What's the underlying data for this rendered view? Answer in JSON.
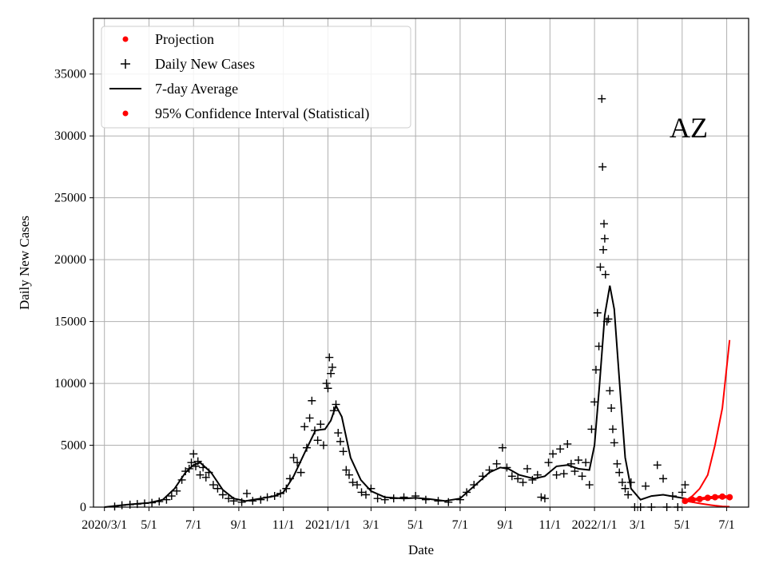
{
  "chart_data": {
    "type": "line",
    "xlabel": "Date",
    "ylabel": "Daily New Cases",
    "annotation": "AZ",
    "ylim": [
      0,
      39500
    ],
    "xlim": [
      "2020-02-15",
      "2022-07-31"
    ],
    "yticks": [
      0,
      5000,
      10000,
      15000,
      20000,
      25000,
      30000,
      35000
    ],
    "xticks": [
      {
        "date": "2020-03-01",
        "label": "2020/3/1"
      },
      {
        "date": "2020-05-01",
        "label": "5/1"
      },
      {
        "date": "2020-07-01",
        "label": "7/1"
      },
      {
        "date": "2020-09-01",
        "label": "9/1"
      },
      {
        "date": "2020-11-01",
        "label": "11/1"
      },
      {
        "date": "2021-01-01",
        "label": "2021/1/1"
      },
      {
        "date": "2021-03-01",
        "label": "3/1"
      },
      {
        "date": "2021-05-01",
        "label": "5/1"
      },
      {
        "date": "2021-07-01",
        "label": "7/1"
      },
      {
        "date": "2021-09-01",
        "label": "9/1"
      },
      {
        "date": "2021-11-01",
        "label": "11/1"
      },
      {
        "date": "2022-01-01",
        "label": "2022/1/1"
      },
      {
        "date": "2022-03-01",
        "label": "3/1"
      },
      {
        "date": "2022-05-01",
        "label": "5/1"
      },
      {
        "date": "2022-07-01",
        "label": "7/1"
      }
    ],
    "grid": true,
    "legend_position": "top-left",
    "legend": [
      {
        "label": "Projection",
        "marker": "dot",
        "color": "#ff0000"
      },
      {
        "label": "Daily New Cases",
        "marker": "plus",
        "color": "#000000"
      },
      {
        "label": "7-day Average",
        "marker": "line",
        "color": "#000000"
      },
      {
        "label": "95% Confidence Interval (Statistical)",
        "marker": "dot",
        "color": "#ff0000"
      }
    ],
    "series": [
      {
        "name": "7-day Average",
        "color": "#000000",
        "points": [
          [
            "2020-03-01",
            0
          ],
          [
            "2020-04-01",
            200
          ],
          [
            "2020-05-01",
            350
          ],
          [
            "2020-05-20",
            600
          ],
          [
            "2020-06-05",
            1500
          ],
          [
            "2020-06-20",
            2800
          ],
          [
            "2020-07-01",
            3400
          ],
          [
            "2020-07-10",
            3600
          ],
          [
            "2020-07-25",
            2800
          ],
          [
            "2020-08-10",
            1400
          ],
          [
            "2020-08-25",
            700
          ],
          [
            "2020-09-10",
            500
          ],
          [
            "2020-10-01",
            700
          ],
          [
            "2020-10-20",
            900
          ],
          [
            "2020-11-01",
            1200
          ],
          [
            "2020-11-15",
            2500
          ],
          [
            "2020-12-01",
            4500
          ],
          [
            "2020-12-15",
            6200
          ],
          [
            "2020-12-28",
            6300
          ],
          [
            "2021-01-05",
            7000
          ],
          [
            "2021-01-12",
            8200
          ],
          [
            "2021-01-20",
            7300
          ],
          [
            "2021-02-01",
            4000
          ],
          [
            "2021-02-15",
            2200
          ],
          [
            "2021-03-01",
            1300
          ],
          [
            "2021-03-20",
            800
          ],
          [
            "2021-04-15",
            700
          ],
          [
            "2021-05-01",
            750
          ],
          [
            "2021-05-20",
            650
          ],
          [
            "2021-06-10",
            500
          ],
          [
            "2021-07-01",
            700
          ],
          [
            "2021-07-20",
            1700
          ],
          [
            "2021-08-10",
            2800
          ],
          [
            "2021-08-25",
            3200
          ],
          [
            "2021-09-05",
            3100
          ],
          [
            "2021-09-20",
            2600
          ],
          [
            "2021-10-10",
            2300
          ],
          [
            "2021-10-25",
            2500
          ],
          [
            "2021-11-10",
            3300
          ],
          [
            "2021-11-25",
            3400
          ],
          [
            "2021-12-10",
            3100
          ],
          [
            "2021-12-25",
            3000
          ],
          [
            "2022-01-01",
            5000
          ],
          [
            "2022-01-08",
            10000
          ],
          [
            "2022-01-15",
            15500
          ],
          [
            "2022-01-22",
            17900
          ],
          [
            "2022-01-28",
            16000
          ],
          [
            "2022-02-05",
            9500
          ],
          [
            "2022-02-12",
            4000
          ],
          [
            "2022-02-20",
            1500
          ],
          [
            "2022-03-05",
            600
          ],
          [
            "2022-03-20",
            900
          ],
          [
            "2022-04-05",
            1000
          ],
          [
            "2022-04-25",
            800
          ],
          [
            "2022-05-05",
            700
          ]
        ]
      },
      {
        "name": "Daily New Cases",
        "color": "#000000",
        "points": [
          [
            "2020-03-15",
            50
          ],
          [
            "2020-03-25",
            150
          ],
          [
            "2020-04-05",
            200
          ],
          [
            "2020-04-15",
            250
          ],
          [
            "2020-04-25",
            300
          ],
          [
            "2020-05-05",
            350
          ],
          [
            "2020-05-15",
            450
          ],
          [
            "2020-05-25",
            600
          ],
          [
            "2020-06-01",
            900
          ],
          [
            "2020-06-08",
            1300
          ],
          [
            "2020-06-15",
            2200
          ],
          [
            "2020-06-20",
            2900
          ],
          [
            "2020-06-25",
            3100
          ],
          [
            "2020-06-28",
            3600
          ],
          [
            "2020-07-01",
            4300
          ],
          [
            "2020-07-04",
            3300
          ],
          [
            "2020-07-07",
            3700
          ],
          [
            "2020-07-10",
            2600
          ],
          [
            "2020-07-14",
            3200
          ],
          [
            "2020-07-18",
            2400
          ],
          [
            "2020-07-22",
            2800
          ],
          [
            "2020-07-28",
            1800
          ],
          [
            "2020-08-03",
            1500
          ],
          [
            "2020-08-10",
            1000
          ],
          [
            "2020-08-18",
            700
          ],
          [
            "2020-08-25",
            500
          ],
          [
            "2020-09-05",
            400
          ],
          [
            "2020-09-12",
            1100
          ],
          [
            "2020-09-20",
            500
          ],
          [
            "2020-10-01",
            600
          ],
          [
            "2020-10-10",
            800
          ],
          [
            "2020-10-20",
            900
          ],
          [
            "2020-10-28",
            1100
          ],
          [
            "2020-11-05",
            1500
          ],
          [
            "2020-11-10",
            2300
          ],
          [
            "2020-11-15",
            4000
          ],
          [
            "2020-11-20",
            3600
          ],
          [
            "2020-11-25",
            2800
          ],
          [
            "2020-11-30",
            6500
          ],
          [
            "2020-12-03",
            4800
          ],
          [
            "2020-12-07",
            7200
          ],
          [
            "2020-12-10",
            8600
          ],
          [
            "2020-12-14",
            6200
          ],
          [
            "2020-12-18",
            5400
          ],
          [
            "2020-12-22",
            6700
          ],
          [
            "2020-12-26",
            5000
          ],
          [
            "2020-12-30",
            10000
          ],
          [
            "2021-01-01",
            9600
          ],
          [
            "2021-01-03",
            12100
          ],
          [
            "2021-01-05",
            10800
          ],
          [
            "2021-01-07",
            11300
          ],
          [
            "2021-01-09",
            7800
          ],
          [
            "2021-01-12",
            8300
          ],
          [
            "2021-01-15",
            6000
          ],
          [
            "2021-01-18",
            5300
          ],
          [
            "2021-01-22",
            4500
          ],
          [
            "2021-01-26",
            3000
          ],
          [
            "2021-01-30",
            2600
          ],
          [
            "2021-02-04",
            2000
          ],
          [
            "2021-02-10",
            1800
          ],
          [
            "2021-02-16",
            1200
          ],
          [
            "2021-02-22",
            1000
          ],
          [
            "2021-03-01",
            1500
          ],
          [
            "2021-03-10",
            700
          ],
          [
            "2021-03-20",
            600
          ],
          [
            "2021-04-01",
            700
          ],
          [
            "2021-04-15",
            800
          ],
          [
            "2021-05-01",
            900
          ],
          [
            "2021-05-15",
            600
          ],
          [
            "2021-06-01",
            500
          ],
          [
            "2021-06-15",
            400
          ],
          [
            "2021-07-01",
            600
          ],
          [
            "2021-07-10",
            1200
          ],
          [
            "2021-07-20",
            1800
          ],
          [
            "2021-08-01",
            2500
          ],
          [
            "2021-08-10",
            3000
          ],
          [
            "2021-08-20",
            3500
          ],
          [
            "2021-08-28",
            4800
          ],
          [
            "2021-09-03",
            3200
          ],
          [
            "2021-09-10",
            2500
          ],
          [
            "2021-09-18",
            2300
          ],
          [
            "2021-09-25",
            2000
          ],
          [
            "2021-10-01",
            3100
          ],
          [
            "2021-10-08",
            2200
          ],
          [
            "2021-10-15",
            2600
          ],
          [
            "2021-10-20",
            800
          ],
          [
            "2021-10-25",
            700
          ],
          [
            "2021-10-30",
            3600
          ],
          [
            "2021-11-05",
            4300
          ],
          [
            "2021-11-10",
            2600
          ],
          [
            "2021-11-15",
            4700
          ],
          [
            "2021-11-20",
            2700
          ],
          [
            "2021-11-25",
            5100
          ],
          [
            "2021-11-30",
            3500
          ],
          [
            "2021-12-05",
            2900
          ],
          [
            "2021-12-10",
            3800
          ],
          [
            "2021-12-15",
            2500
          ],
          [
            "2021-12-20",
            3600
          ],
          [
            "2021-12-25",
            1800
          ],
          [
            "2021-12-28",
            6300
          ],
          [
            "2022-01-01",
            8500
          ],
          [
            "2022-01-03",
            11100
          ],
          [
            "2022-01-05",
            15700
          ],
          [
            "2022-01-07",
            13000
          ],
          [
            "2022-01-09",
            19400
          ],
          [
            "2022-01-11",
            33000
          ],
          [
            "2022-01-12",
            27500
          ],
          [
            "2022-01-13",
            20800
          ],
          [
            "2022-01-14",
            22900
          ],
          [
            "2022-01-15",
            21700
          ],
          [
            "2022-01-16",
            18800
          ],
          [
            "2022-01-18",
            15000
          ],
          [
            "2022-01-20",
            15200
          ],
          [
            "2022-01-22",
            9400
          ],
          [
            "2022-01-24",
            8000
          ],
          [
            "2022-01-26",
            6300
          ],
          [
            "2022-01-28",
            5200
          ],
          [
            "2022-02-01",
            3500
          ],
          [
            "2022-02-04",
            2800
          ],
          [
            "2022-02-08",
            2000
          ],
          [
            "2022-02-12",
            1500
          ],
          [
            "2022-02-16",
            1000
          ],
          [
            "2022-02-20",
            2000
          ],
          [
            "2022-02-25",
            0
          ],
          [
            "2022-03-05",
            0
          ],
          [
            "2022-03-12",
            1700
          ],
          [
            "2022-03-20",
            0
          ],
          [
            "2022-03-28",
            3400
          ],
          [
            "2022-04-05",
            2300
          ],
          [
            "2022-04-10",
            0
          ],
          [
            "2022-04-18",
            900
          ],
          [
            "2022-04-25",
            0
          ],
          [
            "2022-05-01",
            1200
          ],
          [
            "2022-05-05",
            1800
          ]
        ]
      },
      {
        "name": "Projection",
        "color": "#ff0000",
        "points": [
          [
            "2022-05-05",
            500
          ],
          [
            "2022-05-15",
            600
          ],
          [
            "2022-05-25",
            650
          ],
          [
            "2022-06-05",
            750
          ],
          [
            "2022-06-15",
            800
          ],
          [
            "2022-06-25",
            850
          ],
          [
            "2022-07-05",
            800
          ]
        ]
      },
      {
        "name": "95% Confidence Interval (Statistical)",
        "color": "#ff0000",
        "upper": [
          [
            "2022-05-05",
            500
          ],
          [
            "2022-05-15",
            900
          ],
          [
            "2022-05-25",
            1500
          ],
          [
            "2022-06-05",
            2600
          ],
          [
            "2022-06-15",
            5000
          ],
          [
            "2022-06-25",
            8000
          ],
          [
            "2022-07-05",
            13500
          ]
        ],
        "lower": [
          [
            "2022-05-05",
            500
          ],
          [
            "2022-05-15",
            400
          ],
          [
            "2022-05-25",
            300
          ],
          [
            "2022-06-05",
            200
          ],
          [
            "2022-06-15",
            120
          ],
          [
            "2022-06-25",
            60
          ],
          [
            "2022-07-05",
            30
          ]
        ]
      }
    ]
  }
}
